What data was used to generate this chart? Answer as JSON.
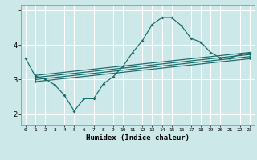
{
  "title": "",
  "xlabel": "Humidex (Indice chaleur)",
  "bg_color": "#cce8e8",
  "line_color": "#1a6b6b",
  "grid_color": "#ffffff",
  "xlim": [
    -0.5,
    23.5
  ],
  "ylim": [
    1.7,
    5.15
  ],
  "yticks": [
    2,
    3,
    4,
    5
  ],
  "ytick_labels": [
    "2",
    "3",
    "4",
    ""
  ],
  "xticks": [
    0,
    1,
    2,
    3,
    4,
    5,
    6,
    7,
    8,
    9,
    10,
    11,
    12,
    13,
    14,
    15,
    16,
    17,
    18,
    19,
    20,
    21,
    22,
    23
  ],
  "main_curve_x": [
    0,
    1,
    2,
    3,
    4,
    5,
    6,
    7,
    8,
    9,
    10,
    11,
    12,
    13,
    14,
    15,
    16,
    17,
    18,
    19,
    20,
    21,
    22,
    23
  ],
  "main_curve_y": [
    3.62,
    3.1,
    3.02,
    2.85,
    2.55,
    2.1,
    2.45,
    2.45,
    2.88,
    3.08,
    3.38,
    3.78,
    4.12,
    4.58,
    4.78,
    4.78,
    4.55,
    4.18,
    4.08,
    3.78,
    3.62,
    3.62,
    3.72,
    3.76
  ],
  "line1_x": [
    1,
    23
  ],
  "line1_y": [
    3.12,
    3.78
  ],
  "line2_x": [
    1,
    23
  ],
  "line2_y": [
    3.06,
    3.72
  ],
  "line3_x": [
    1,
    23
  ],
  "line3_y": [
    3.0,
    3.66
  ],
  "line4_x": [
    1,
    23
  ],
  "line4_y": [
    2.94,
    3.6
  ]
}
